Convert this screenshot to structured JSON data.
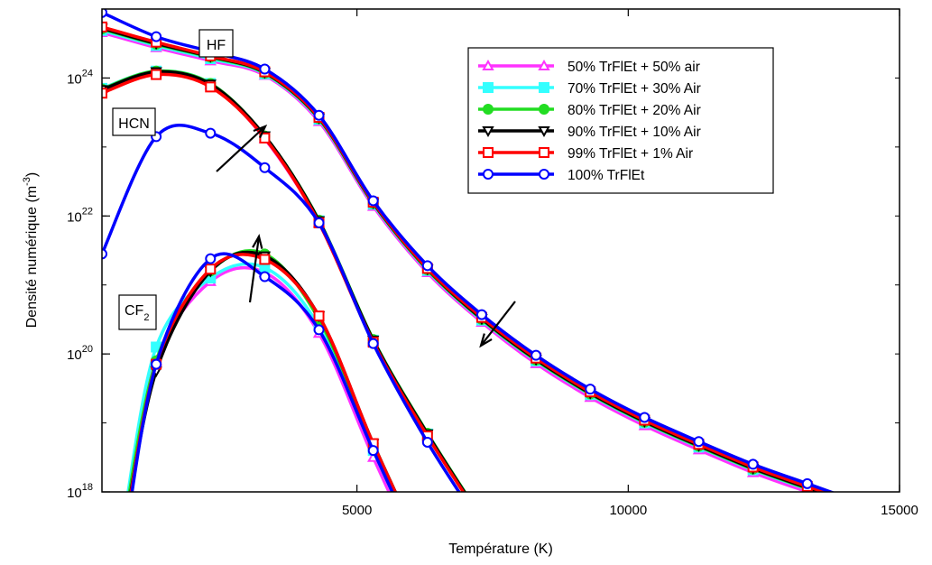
{
  "chart_data": {
    "type": "line",
    "xlabel": "Température (K)",
    "ylabel_base": "Densité numérique (m",
    "ylabel_exp": "-3",
    "ylabel_close": ")",
    "xlim": [
      300,
      15000
    ],
    "ylim": [
      1e+18,
      1e+25
    ],
    "yscale": "log",
    "xticks": [
      5000,
      10000,
      15000
    ],
    "xtick_labels": [
      "5000",
      "10000",
      "15000"
    ],
    "yticks": [
      1e+18,
      1e+20,
      1e+22,
      1e+24
    ],
    "ytick_base": "10",
    "ytick_exps": [
      "18",
      "20",
      "22",
      "24"
    ],
    "grid": false,
    "legend_position": "top-right",
    "series": [
      {
        "name": "50% TrFlEt + 50% air",
        "color": "#ff33ff",
        "marker": "triangle"
      },
      {
        "name": "70% TrFlEt + 30% Air",
        "color": "#33ffff",
        "marker": "square-filled"
      },
      {
        "name": "80% TrFlEt + 20% Air",
        "color": "#22dd22",
        "marker": "circle-filled"
      },
      {
        "name": "90% TrFlEt + 10% Air",
        "color": "#000000",
        "marker": "triangle-down"
      },
      {
        "name": "99% TrFlEt + 1% Air",
        "color": "#ff0000",
        "marker": "square"
      },
      {
        "name": "100% TrFlEt",
        "color": "#0000ff",
        "marker": "circle"
      }
    ],
    "species": {
      "HF": {
        "x": [
          300,
          1300,
          2300,
          3300,
          4300,
          5300,
          6300,
          7300,
          8300,
          9300,
          10300,
          11300,
          12300,
          13300,
          14300
        ],
        "log_y": {
          "50% TrFlEt + 50% air": [
            24.66,
            24.44,
            24.25,
            24.04,
            23.37,
            22.14,
            21.18,
            20.46,
            19.86,
            19.37,
            18.96,
            18.61,
            18.28,
            18.0,
            17.73
          ],
          "70% TrFlEt + 30% Air": [
            24.69,
            24.47,
            24.28,
            24.06,
            23.4,
            22.17,
            21.21,
            20.49,
            19.9,
            19.41,
            19.0,
            18.65,
            18.32,
            18.04,
            17.77
          ],
          "80% TrFlEt + 20% Air": [
            24.71,
            24.49,
            24.3,
            24.07,
            23.41,
            22.18,
            21.22,
            20.5,
            19.91,
            19.42,
            19.01,
            18.66,
            18.33,
            18.05,
            17.78
          ],
          "90% TrFlEt + 10% Air": [
            24.72,
            24.5,
            24.31,
            24.08,
            23.42,
            22.19,
            21.23,
            20.51,
            19.92,
            19.43,
            19.02,
            18.67,
            18.34,
            18.06,
            17.79
          ],
          "99% TrFlEt + 1% Air": [
            24.74,
            24.52,
            24.32,
            24.09,
            23.43,
            22.2,
            21.24,
            20.53,
            19.94,
            19.45,
            19.04,
            18.69,
            18.36,
            18.08,
            17.81
          ],
          "100% TrFlEt": [
            24.95,
            24.6,
            24.38,
            24.13,
            23.46,
            22.22,
            21.28,
            20.57,
            19.98,
            19.49,
            19.08,
            18.73,
            18.4,
            18.12,
            17.84
          ]
        }
      },
      "HCN": {
        "x": [
          300,
          1300,
          2300,
          3300,
          4300,
          5300,
          6300,
          7300
        ],
        "log_y": {
          "50% TrFlEt + 50% air": [
            23.85,
            24.09,
            23.9,
            23.12,
            21.9,
            20.18,
            18.82,
            17.6
          ],
          "70% TrFlEt + 30% Air": [
            23.85,
            24.1,
            23.92,
            23.15,
            21.93,
            20.2,
            18.84,
            17.62
          ],
          "80% TrFlEt + 20% Air": [
            23.84,
            24.1,
            23.92,
            23.16,
            21.94,
            20.21,
            18.85,
            17.62
          ],
          "90% TrFlEt + 10% Air": [
            23.83,
            24.09,
            23.91,
            23.16,
            21.93,
            20.2,
            18.84,
            17.61
          ],
          "99% TrFlEt + 1% Air": [
            23.78,
            24.05,
            23.87,
            23.13,
            21.9,
            20.17,
            18.81,
            17.59
          ],
          "100% TrFlEt": [
            21.45,
            23.15,
            23.2,
            22.7,
            21.9,
            20.15,
            18.72,
            17.5
          ]
        }
      },
      "CF2": {
        "x": [
          700,
          1300,
          2300,
          3300,
          4300,
          5300,
          6300
        ],
        "log_y": {
          "50% TrFlEt + 50% air": [
            17.6,
            19.9,
            21.05,
            21.18,
            20.3,
            18.5,
            16.8
          ],
          "70% TrFlEt + 30% Air": [
            17.6,
            20.1,
            21.1,
            21.25,
            20.4,
            18.6,
            16.9
          ],
          "80% TrFlEt + 20% Air": [
            17.5,
            19.9,
            21.2,
            21.45,
            20.5,
            18.7,
            17.0
          ],
          "90% TrFlEt + 10% Air": [
            17.4,
            19.75,
            21.2,
            21.42,
            20.55,
            18.7,
            17.0
          ],
          "99% TrFlEt + 1% Air": [
            17.3,
            19.85,
            21.23,
            21.37,
            20.55,
            18.7,
            17.0
          ],
          "100% TrFlEt": [
            17.2,
            19.85,
            21.38,
            21.12,
            20.35,
            18.6,
            16.9
          ]
        }
      }
    },
    "annotations": [
      {
        "label": "HF"
      },
      {
        "label": "HCN"
      },
      {
        "label_base": "CF",
        "label_sub": "2"
      }
    ]
  }
}
